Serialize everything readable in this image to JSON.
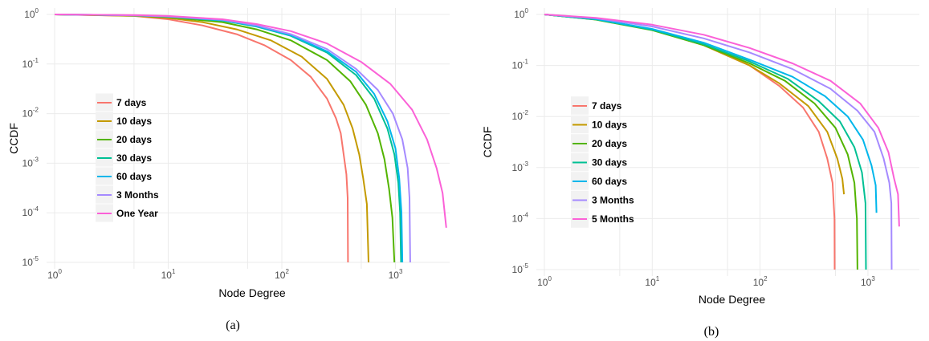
{
  "chart_data": [
    {
      "id": "a",
      "type": "line",
      "caption": "(a)",
      "xlabel": "Node Degree",
      "ylabel": "CCDF",
      "x_scale": "log10",
      "y_scale": "log10",
      "xlim": [
        1,
        3000
      ],
      "ylim": [
        1e-05,
        1
      ],
      "x_ticks": [
        {
          "base": "10",
          "exp": "0",
          "value": 1
        },
        {
          "base": "10",
          "exp": "1",
          "value": 10
        },
        {
          "base": "10",
          "exp": "2",
          "value": 100
        },
        {
          "base": "10",
          "exp": "3",
          "value": 1000
        }
      ],
      "y_ticks": [
        {
          "base": "10",
          "exp": "0",
          "value": 1
        },
        {
          "base": "10",
          "exp": "-1",
          "value": 0.1
        },
        {
          "base": "10",
          "exp": "-2",
          "value": 0.01
        },
        {
          "base": "10",
          "exp": "-3",
          "value": 0.001
        },
        {
          "base": "10",
          "exp": "-4",
          "value": 0.0001
        },
        {
          "base": "10",
          "exp": "-5",
          "value": 1e-05
        }
      ],
      "grid": true,
      "legend_position": "left-middle",
      "series": [
        {
          "name": "7 days",
          "color": "#F8766D",
          "points": [
            [
              1,
              1
            ],
            [
              5,
              0.93
            ],
            [
              10,
              0.8
            ],
            [
              20,
              0.6
            ],
            [
              40,
              0.4
            ],
            [
              70,
              0.24
            ],
            [
              120,
              0.12
            ],
            [
              180,
              0.055
            ],
            [
              250,
              0.02
            ],
            [
              300,
              0.008
            ],
            [
              330,
              0.004
            ],
            [
              350,
              0.0015
            ],
            [
              370,
              0.0006
            ],
            [
              380,
              0.0002
            ],
            [
              382,
              1e-05
            ]
          ]
        },
        {
          "name": "10 days",
          "color": "#C49A00",
          "points": [
            [
              1,
              1
            ],
            [
              5,
              0.94
            ],
            [
              10,
              0.85
            ],
            [
              20,
              0.7
            ],
            [
              40,
              0.5
            ],
            [
              80,
              0.3
            ],
            [
              150,
              0.14
            ],
            [
              250,
              0.05
            ],
            [
              350,
              0.015
            ],
            [
              420,
              0.005
            ],
            [
              480,
              0.0015
            ],
            [
              520,
              0.0005
            ],
            [
              560,
              0.00015
            ],
            [
              580,
              1e-05
            ]
          ]
        },
        {
          "name": "20 days",
          "color": "#53B400",
          "points": [
            [
              1,
              1
            ],
            [
              5,
              0.95
            ],
            [
              10,
              0.88
            ],
            [
              30,
              0.7
            ],
            [
              60,
              0.5
            ],
            [
              120,
              0.3
            ],
            [
              250,
              0.12
            ],
            [
              400,
              0.045
            ],
            [
              550,
              0.015
            ],
            [
              700,
              0.004
            ],
            [
              800,
              0.0012
            ],
            [
              880,
              0.0003
            ],
            [
              940,
              8e-05
            ],
            [
              980,
              1e-05
            ]
          ]
        },
        {
          "name": "30 days",
          "color": "#00C094",
          "points": [
            [
              1,
              1
            ],
            [
              5,
              0.96
            ],
            [
              10,
              0.9
            ],
            [
              30,
              0.75
            ],
            [
              60,
              0.57
            ],
            [
              120,
              0.37
            ],
            [
              250,
              0.17
            ],
            [
              450,
              0.06
            ],
            [
              650,
              0.02
            ],
            [
              850,
              0.005
            ],
            [
              980,
              0.0015
            ],
            [
              1060,
              0.0004
            ],
            [
              1100,
              0.0001
            ],
            [
              1120,
              1e-05
            ]
          ]
        },
        {
          "name": "60 days",
          "color": "#00B6EB",
          "points": [
            [
              1,
              1
            ],
            [
              5,
              0.96
            ],
            [
              10,
              0.9
            ],
            [
              30,
              0.76
            ],
            [
              60,
              0.58
            ],
            [
              120,
              0.38
            ],
            [
              250,
              0.18
            ],
            [
              450,
              0.07
            ],
            [
              650,
              0.025
            ],
            [
              850,
              0.007
            ],
            [
              1000,
              0.002
            ],
            [
              1080,
              0.0005
            ],
            [
              1130,
              0.0001
            ],
            [
              1150,
              1e-05
            ]
          ]
        },
        {
          "name": "3 Months",
          "color": "#A58AFF",
          "points": [
            [
              1,
              1
            ],
            [
              5,
              0.96
            ],
            [
              10,
              0.91
            ],
            [
              30,
              0.78
            ],
            [
              60,
              0.6
            ],
            [
              120,
              0.4
            ],
            [
              250,
              0.2
            ],
            [
              450,
              0.08
            ],
            [
              700,
              0.03
            ],
            [
              950,
              0.01
            ],
            [
              1150,
              0.003
            ],
            [
              1280,
              0.0008
            ],
            [
              1330,
              0.0002
            ],
            [
              1350,
              1e-05
            ]
          ]
        },
        {
          "name": "One Year",
          "color": "#FB61D7",
          "points": [
            [
              1,
              1
            ],
            [
              5,
              0.97
            ],
            [
              10,
              0.93
            ],
            [
              30,
              0.8
            ],
            [
              60,
              0.64
            ],
            [
              120,
              0.46
            ],
            [
              250,
              0.26
            ],
            [
              500,
              0.11
            ],
            [
              900,
              0.04
            ],
            [
              1400,
              0.012
            ],
            [
              1900,
              0.003
            ],
            [
              2300,
              0.0008
            ],
            [
              2600,
              0.00025
            ],
            [
              2800,
              5e-05
            ]
          ]
        }
      ]
    },
    {
      "id": "b",
      "type": "line",
      "caption": "(b)",
      "xlabel": "Node Degree",
      "ylabel": "CCDF",
      "x_scale": "log10",
      "y_scale": "log10",
      "xlim": [
        1,
        3000
      ],
      "ylim": [
        1e-05,
        1
      ],
      "x_ticks": [
        {
          "base": "10",
          "exp": "0",
          "value": 1
        },
        {
          "base": "10",
          "exp": "1",
          "value": 10
        },
        {
          "base": "10",
          "exp": "2",
          "value": 100
        },
        {
          "base": "10",
          "exp": "3",
          "value": 1000
        }
      ],
      "y_ticks": [
        {
          "base": "10",
          "exp": "0",
          "value": 1
        },
        {
          "base": "10",
          "exp": "-1",
          "value": 0.1
        },
        {
          "base": "10",
          "exp": "-2",
          "value": 0.01
        },
        {
          "base": "10",
          "exp": "-3",
          "value": 0.001
        },
        {
          "base": "10",
          "exp": "-4",
          "value": 0.0001
        },
        {
          "base": "10",
          "exp": "-5",
          "value": 1e-05
        }
      ],
      "grid": true,
      "legend_position": "left-middle",
      "series": [
        {
          "name": "7 days",
          "color": "#F8766D",
          "points": [
            [
              1,
              1
            ],
            [
              3,
              0.8
            ],
            [
              10,
              0.5
            ],
            [
              30,
              0.25
            ],
            [
              80,
              0.1
            ],
            [
              150,
              0.04
            ],
            [
              250,
              0.015
            ],
            [
              350,
              0.005
            ],
            [
              420,
              0.0015
            ],
            [
              470,
              0.0005
            ],
            [
              490,
              0.0001
            ],
            [
              492,
              1e-05
            ]
          ]
        },
        {
          "name": "10 days",
          "color": "#C49A00",
          "points": [
            [
              1,
              1
            ],
            [
              3,
              0.8
            ],
            [
              10,
              0.5
            ],
            [
              30,
              0.25
            ],
            [
              80,
              0.1
            ],
            [
              150,
              0.045
            ],
            [
              280,
              0.016
            ],
            [
              420,
              0.005
            ],
            [
              520,
              0.0015
            ],
            [
              580,
              0.0006
            ],
            [
              600,
              0.0003
            ]
          ]
        },
        {
          "name": "20 days",
          "color": "#53B400",
          "points": [
            [
              1,
              1
            ],
            [
              3,
              0.79
            ],
            [
              10,
              0.49
            ],
            [
              30,
              0.25
            ],
            [
              80,
              0.11
            ],
            [
              170,
              0.05
            ],
            [
              320,
              0.018
            ],
            [
              500,
              0.006
            ],
            [
              650,
              0.0018
            ],
            [
              750,
              0.0005
            ],
            [
              790,
              0.0001
            ],
            [
              800,
              1e-05
            ]
          ]
        },
        {
          "name": "30 days",
          "color": "#00C094",
          "points": [
            [
              1,
              1
            ],
            [
              3,
              0.8
            ],
            [
              10,
              0.5
            ],
            [
              30,
              0.26
            ],
            [
              80,
              0.12
            ],
            [
              180,
              0.055
            ],
            [
              350,
              0.02
            ],
            [
              550,
              0.008
            ],
            [
              750,
              0.0025
            ],
            [
              880,
              0.0008
            ],
            [
              950,
              0.0002
            ],
            [
              960,
              1e-05
            ]
          ]
        },
        {
          "name": "60 days",
          "color": "#00B6EB",
          "points": [
            [
              1,
              1
            ],
            [
              3,
              0.81
            ],
            [
              10,
              0.52
            ],
            [
              30,
              0.28
            ],
            [
              80,
              0.13
            ],
            [
              200,
              0.06
            ],
            [
              400,
              0.025
            ],
            [
              650,
              0.01
            ],
            [
              900,
              0.0035
            ],
            [
              1080,
              0.0011
            ],
            [
              1180,
              0.00045
            ],
            [
              1200,
              0.00013
            ]
          ]
        },
        {
          "name": "3 Months",
          "color": "#A58AFF",
          "points": [
            [
              1,
              1
            ],
            [
              3,
              0.84
            ],
            [
              10,
              0.58
            ],
            [
              30,
              0.34
            ],
            [
              80,
              0.18
            ],
            [
              200,
              0.085
            ],
            [
              450,
              0.035
            ],
            [
              800,
              0.013
            ],
            [
              1150,
              0.005
            ],
            [
              1400,
              0.0015
            ],
            [
              1580,
              0.0005
            ],
            [
              1650,
              0.0002
            ],
            [
              1660,
              1e-05
            ]
          ]
        },
        {
          "name": "5 Months",
          "color": "#FB61D7",
          "points": [
            [
              1,
              1
            ],
            [
              3,
              0.86
            ],
            [
              10,
              0.63
            ],
            [
              30,
              0.4
            ],
            [
              80,
              0.22
            ],
            [
              200,
              0.11
            ],
            [
              450,
              0.05
            ],
            [
              850,
              0.018
            ],
            [
              1250,
              0.006
            ],
            [
              1550,
              0.002
            ],
            [
              1750,
              0.0006
            ],
            [
              1900,
              0.0003
            ],
            [
              1950,
              7e-05
            ]
          ]
        }
      ]
    }
  ]
}
